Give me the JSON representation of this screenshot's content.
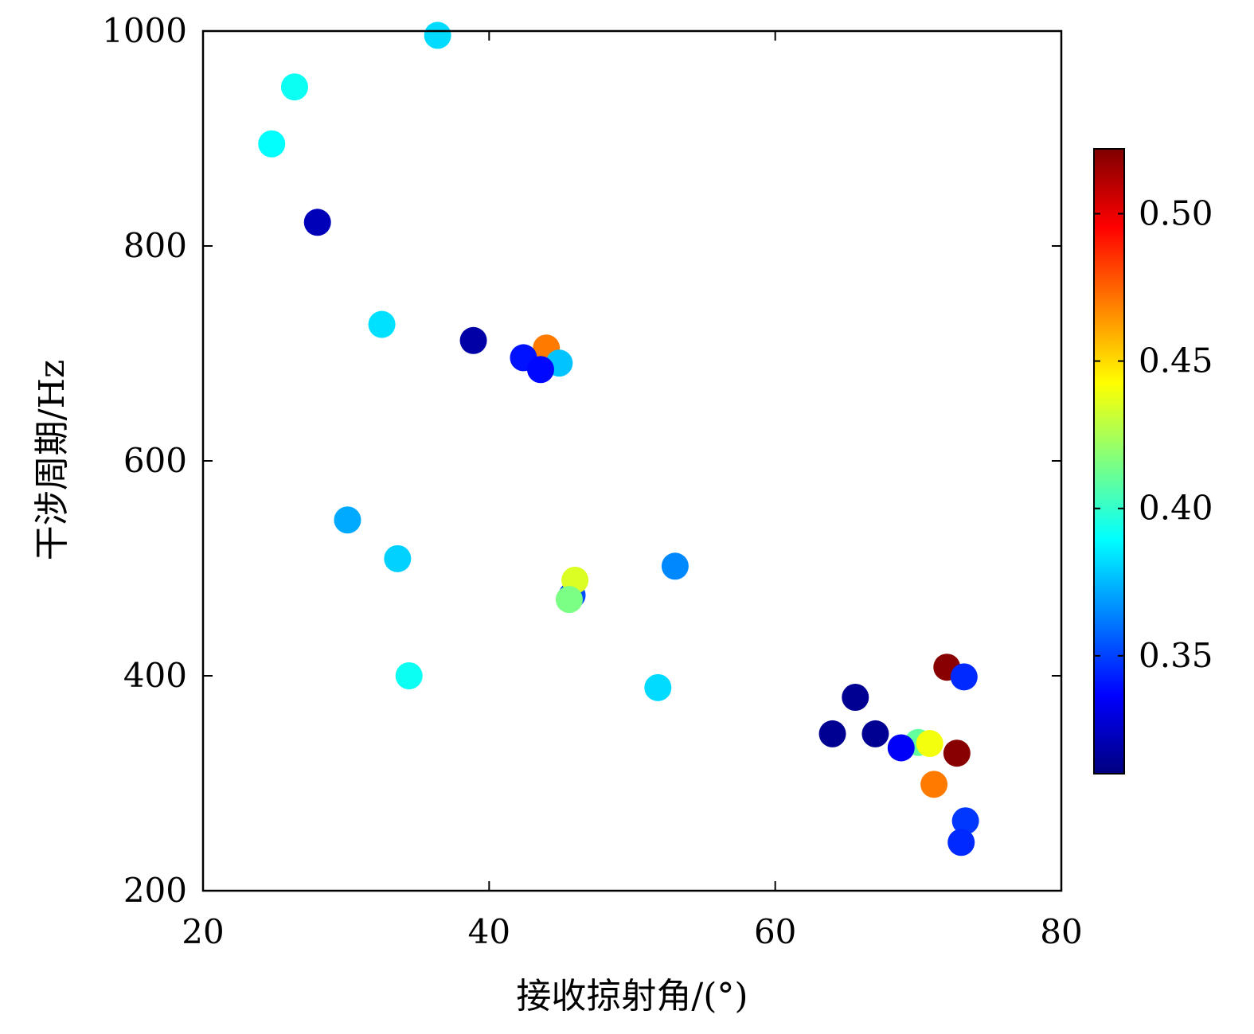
{
  "chart_data": {
    "type": "scatter",
    "xlabel": "接收掠射角/(°)",
    "ylabel": "干涉周期/Hz",
    "xlim": [
      20,
      80
    ],
    "ylim": [
      200,
      1000
    ],
    "x_ticks": [
      20,
      40,
      60,
      80
    ],
    "y_ticks": [
      200,
      400,
      600,
      800,
      1000
    ],
    "colorbar": {
      "range": [
        0.31,
        0.522
      ],
      "ticks": [
        0.35,
        0.4,
        0.45,
        0.5
      ],
      "tick_labels": [
        "0.35",
        "0.40",
        "0.45",
        "0.50"
      ],
      "colormap": "jet"
    },
    "grid": false,
    "points": [
      {
        "x": 36.4,
        "y": 996,
        "c": 0.382
      },
      {
        "x": 26.4,
        "y": 948,
        "c": 0.392
      },
      {
        "x": 24.8,
        "y": 895,
        "c": 0.39
      },
      {
        "x": 28.0,
        "y": 822,
        "c": 0.322
      },
      {
        "x": 32.5,
        "y": 727,
        "c": 0.383
      },
      {
        "x": 38.9,
        "y": 712,
        "c": 0.318
      },
      {
        "x": 44.0,
        "y": 705,
        "c": 0.47
      },
      {
        "x": 44.9,
        "y": 691,
        "c": 0.377
      },
      {
        "x": 42.4,
        "y": 696,
        "c": 0.34
      },
      {
        "x": 43.6,
        "y": 685,
        "c": 0.338
      },
      {
        "x": 30.1,
        "y": 545,
        "c": 0.372
      },
      {
        "x": 33.6,
        "y": 509,
        "c": 0.38
      },
      {
        "x": 45.8,
        "y": 475,
        "c": 0.352
      },
      {
        "x": 46.0,
        "y": 489,
        "c": 0.435
      },
      {
        "x": 45.6,
        "y": 471,
        "c": 0.415
      },
      {
        "x": 53.0,
        "y": 502,
        "c": 0.365
      },
      {
        "x": 34.4,
        "y": 400,
        "c": 0.392
      },
      {
        "x": 51.8,
        "y": 389,
        "c": 0.382
      },
      {
        "x": 65.6,
        "y": 380,
        "c": 0.314
      },
      {
        "x": 64.0,
        "y": 346,
        "c": 0.314
      },
      {
        "x": 67.0,
        "y": 346,
        "c": 0.314
      },
      {
        "x": 70.0,
        "y": 338,
        "c": 0.41
      },
      {
        "x": 70.8,
        "y": 337,
        "c": 0.44
      },
      {
        "x": 68.8,
        "y": 333,
        "c": 0.335
      },
      {
        "x": 72.0,
        "y": 408,
        "c": 0.52
      },
      {
        "x": 73.2,
        "y": 399,
        "c": 0.345
      },
      {
        "x": 72.7,
        "y": 328,
        "c": 0.52
      },
      {
        "x": 71.1,
        "y": 299,
        "c": 0.47
      },
      {
        "x": 73.3,
        "y": 265,
        "c": 0.348
      },
      {
        "x": 73.0,
        "y": 245,
        "c": 0.345
      }
    ]
  }
}
